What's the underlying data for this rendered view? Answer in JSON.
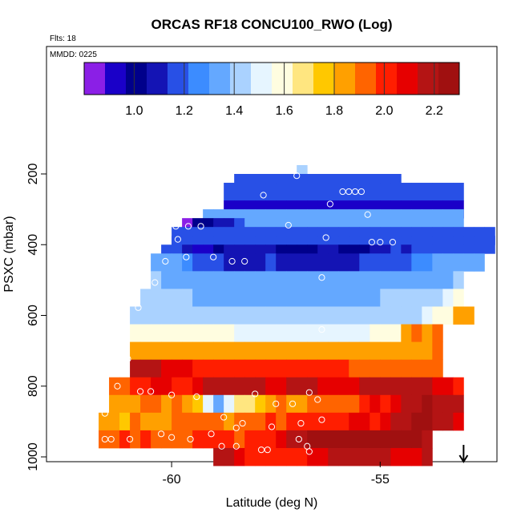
{
  "title": "ORCAS RF18 CONCU100_RWO (Log)",
  "flights_label": "Flts: 18",
  "date_label": "MMDD: 0225",
  "colors": {
    "scale": [
      "#8b1fe6",
      "#1a00c8",
      "#00008b",
      "#1414b4",
      "#2850e6",
      "#3c8cff",
      "#64a8ff",
      "#aad2ff",
      "#e6f5ff",
      "#fffde0",
      "#ffe680",
      "#ffc800",
      "#ffa000",
      "#ff6400",
      "#ff1e00",
      "#e60000",
      "#b41414",
      "#a01010"
    ],
    "arrow": "#000000",
    "marker": "#ffffff"
  },
  "chart_data": {
    "type": "heatmap",
    "title": "ORCAS RF18 CONCU100_RWO (Log)",
    "xlabel": "Latitude (deg N)",
    "ylabel": "PSXC (mbar)",
    "xlim": [
      -63,
      -52.2
    ],
    "ylim": [
      1010,
      0
    ],
    "x_ticks": [
      -60,
      -55
    ],
    "x_tick_labels": [
      "-60",
      "-55"
    ],
    "y_ticks": [
      200,
      400,
      600,
      800,
      1000
    ],
    "y_tick_labels": [
      "200",
      "400",
      "600",
      "800",
      "1000"
    ],
    "colorbar": {
      "range": [
        0.8,
        2.3
      ],
      "ticks": [
        1.0,
        1.2,
        1.4,
        1.6,
        1.8,
        2.0,
        2.2
      ],
      "tick_labels": [
        "1.0",
        "1.2",
        "1.4",
        "1.6",
        "1.8",
        "2.0",
        "2.2"
      ]
    },
    "cell_width_deg": 0.25,
    "cell_height_mbar": 50,
    "rows": [
      {
        "p": 200,
        "lat0": -57.0,
        "values": [
          1.4
        ]
      },
      {
        "p": 225,
        "lat0": -58.5,
        "values": [
          1.2,
          1.2,
          1.2,
          1.2,
          1.2,
          1.2,
          1.2,
          1.2,
          1.2,
          1.2,
          1.2,
          1.2,
          1.2,
          1.2,
          1.2,
          1.2
        ]
      },
      {
        "p": 250,
        "lat0": -58.75,
        "values": [
          1.2,
          1.2,
          1.2,
          1.2,
          1.2,
          1.2,
          1.2,
          1.2,
          1.2,
          1.2,
          1.2,
          1.2,
          1.2,
          1.2,
          1.2,
          1.2,
          1.2,
          1.2,
          1.2,
          1.2,
          1.2,
          1.2,
          1.2
        ]
      },
      {
        "p": 300,
        "lat0": -58.75,
        "values": [
          0.95,
          0.95,
          0.95,
          0.95,
          0.95,
          0.95,
          0.95,
          0.95,
          0.95,
          0.95,
          0.95,
          0.95,
          0.95,
          0.95,
          0.95,
          0.95,
          0.95,
          0.95,
          0.95,
          0.95,
          0.95,
          0.95,
          0.95
        ]
      },
      {
        "p": 325,
        "lat0": -59.25,
        "values": [
          1.3,
          1.3,
          1.3,
          1.3,
          1.3,
          1.3,
          1.3,
          1.3,
          1.3,
          1.3,
          1.3,
          1.3,
          1.3,
          1.3,
          1.3,
          1.3,
          1.3,
          1.3,
          1.3,
          1.3,
          1.3,
          1.3,
          1.3,
          1.3,
          1.3
        ]
      },
      {
        "p": 350,
        "lat0": -59.75,
        "values": [
          0.85,
          1.0,
          1.0,
          1.05,
          1.1,
          1.2,
          1.3,
          1.3,
          1.3,
          1.3,
          1.3,
          1.3,
          1.3,
          1.3,
          1.3,
          1.3,
          1.3,
          1.3,
          1.3,
          1.3,
          1.3,
          1.3,
          1.3,
          1.3,
          1.3
        ]
      },
      {
        "p": 375,
        "lat0": -60.0,
        "values": [
          1.2,
          1.2,
          1.2,
          1.2,
          1.2,
          1.2,
          1.2,
          1.2,
          1.2,
          1.2,
          1.2,
          1.2,
          1.2,
          1.2,
          1.2,
          1.2,
          1.2,
          1.2,
          1.2,
          1.2,
          1.2,
          1.2,
          1.2,
          1.2,
          1.2,
          1.2,
          1.2,
          1.2,
          1.2,
          1.2,
          1.2
        ]
      },
      {
        "p": 400,
        "lat0": -60.0,
        "values": [
          1.2,
          1.2,
          1.2,
          1.2,
          1.2,
          1.2,
          1.2,
          1.2,
          1.2,
          1.2,
          1.2,
          1.2,
          1.2,
          1.2,
          1.2,
          1.2,
          1.2,
          1.2,
          1.2,
          1.2,
          1.2,
          1.2,
          1.2,
          1.2,
          1.2,
          1.2,
          1.2,
          1.2,
          1.2,
          1.2,
          1.2
        ]
      },
      {
        "p": 425,
        "lat0": -60.25,
        "values": [
          1.2,
          1.2,
          1.1,
          0.95,
          0.9,
          1.0,
          1.05,
          1.1,
          1.1,
          1.05,
          1.05,
          1.0,
          1.0,
          1.0,
          1.0,
          1.05,
          1.05,
          1.0,
          1.0,
          1.0,
          1.05,
          1.1,
          1.15,
          1.1,
          1.2,
          1.2,
          1.2,
          1.2,
          1.2,
          1.2
        ]
      },
      {
        "p": 450,
        "lat0": -60.5,
        "values": [
          1.35,
          1.3,
          1.3,
          1.25,
          1.2,
          1.2,
          1.15,
          1.1,
          1.1,
          1.1,
          1.1,
          1.15,
          1.1,
          1.1,
          1.05,
          1.05,
          1.1,
          1.1,
          1.05,
          1.1,
          1.15,
          1.15,
          1.2,
          1.2,
          1.2,
          1.25,
          1.25,
          1.3,
          1.3,
          1.3,
          1.3,
          1.3
        ]
      },
      {
        "p": 500,
        "lat0": -60.5,
        "values": [
          1.4,
          1.35,
          1.35,
          1.35,
          1.35,
          1.35,
          1.35,
          1.3,
          1.3,
          1.3,
          1.3,
          1.3,
          1.3,
          1.3,
          1.3,
          1.3,
          1.3,
          1.3,
          1.3,
          1.3,
          1.3,
          1.3,
          1.3,
          1.35,
          1.35,
          1.35,
          1.35,
          1.35,
          1.35,
          1.4
        ]
      },
      {
        "p": 550,
        "lat0": -60.75,
        "values": [
          1.45,
          1.45,
          1.4,
          1.4,
          1.4,
          1.35,
          1.35,
          1.35,
          1.35,
          1.35,
          1.35,
          1.35,
          1.35,
          1.35,
          1.35,
          1.35,
          1.35,
          1.35,
          1.35,
          1.35,
          1.35,
          1.35,
          1.35,
          1.4,
          1.4,
          1.4,
          1.4,
          1.4,
          1.45,
          1.5,
          1.55
        ]
      },
      {
        "p": 600,
        "lat0": -61.0,
        "values": [
          1.45,
          1.45,
          1.45,
          1.45,
          1.45,
          1.4,
          1.4,
          1.4,
          1.4,
          1.4,
          1.4,
          1.4,
          1.4,
          1.4,
          1.4,
          1.4,
          1.4,
          1.4,
          1.4,
          1.4,
          1.4,
          1.4,
          1.45,
          1.45,
          1.45,
          1.45,
          1.45,
          1.45,
          1.5,
          1.6,
          1.6,
          1.8,
          1.85
        ]
      },
      {
        "p": 650,
        "lat0": -61.0,
        "values": [
          1.6,
          1.6,
          1.6,
          1.6,
          1.6,
          1.6,
          1.55,
          1.55,
          1.55,
          1.55,
          1.5,
          1.5,
          1.5,
          1.5,
          1.5,
          1.5,
          1.5,
          1.5,
          1.5,
          1.5,
          1.5,
          1.5,
          1.5,
          1.55,
          1.55,
          1.6,
          1.8,
          1.95,
          1.8,
          1.95
        ]
      },
      {
        "p": 700,
        "lat0": -61.0,
        "values": [
          1.85,
          1.85,
          1.85,
          1.85,
          1.85,
          1.85,
          1.85,
          1.85,
          1.85,
          1.85,
          1.85,
          1.85,
          1.85,
          1.85,
          1.85,
          1.8,
          1.8,
          1.8,
          1.8,
          1.8,
          1.8,
          1.8,
          1.8,
          1.8,
          1.85,
          1.8,
          1.8,
          1.85,
          1.8,
          1.95
        ]
      },
      {
        "p": 750,
        "lat0": -61.0,
        "values": [
          2.15,
          2.15,
          2.15,
          2.1,
          2.1,
          2.1,
          2.05,
          2.05,
          2.05,
          2.05,
          2.05,
          2.05,
          2.0,
          2.0,
          2.0,
          2.0,
          2.0,
          2.0,
          2.0,
          2.0,
          2.0,
          1.95,
          1.95,
          1.95,
          1.95,
          1.95,
          1.95,
          1.9,
          1.9,
          1.9
        ]
      },
      {
        "p": 800,
        "lat0": -61.5,
        "values": [
          1.95,
          1.95,
          2.0,
          2.05,
          2.1,
          2.1,
          2.05,
          2.05,
          2.1,
          2.15,
          2.15,
          2.15,
          2.2,
          2.2,
          2.15,
          2.1,
          2.1,
          2.15,
          2.15,
          2.15,
          2.1,
          2.1,
          2.1,
          2.1,
          2.15,
          2.15,
          2.2,
          2.15,
          2.15,
          2.15,
          2.15,
          2.1,
          2.1,
          2.05
        ]
      },
      {
        "p": 850,
        "lat0": -61.5,
        "values": [
          1.8,
          1.8,
          1.85,
          1.9,
          1.95,
          1.85,
          1.9,
          1.8,
          1.75,
          1.5,
          1.3,
          1.5,
          1.65,
          1.7,
          1.75,
          1.85,
          1.9,
          1.8,
          1.85,
          1.9,
          1.95,
          1.95,
          1.9,
          1.95,
          2.0,
          2.1,
          2.05,
          2.1,
          2.15,
          2.2,
          2.25,
          2.15,
          2.2,
          2.15
        ]
      },
      {
        "p": 900,
        "lat0": -61.75,
        "values": [
          1.8,
          1.8,
          1.75,
          1.9,
          1.8,
          1.85,
          1.85,
          1.9,
          1.9,
          1.95,
          1.95,
          1.9,
          1.85,
          1.95,
          1.95,
          1.95,
          2.0,
          1.95,
          2.0,
          2.0,
          2.05,
          2.05,
          2.0,
          2.05,
          2.1,
          2.1,
          2.05,
          2.1,
          2.15,
          2.2,
          2.25,
          2.25,
          2.2,
          2.15,
          2.1
        ]
      },
      {
        "p": 950,
        "lat0": -61.75,
        "values": [
          1.95,
          1.95,
          2.05,
          1.95,
          2.0,
          1.9,
          1.9,
          1.95,
          1.95,
          2.0,
          2.0,
          2.05,
          2.0,
          1.95,
          2.0,
          2.0,
          2.05,
          2.1,
          2.15,
          2.2,
          2.25,
          2.25,
          2.25,
          2.25,
          2.25,
          2.25,
          2.25,
          2.25,
          2.25,
          2.25,
          2.25,
          2.2
        ]
      },
      {
        "p": 1000,
        "lat0": -59.0,
        "values": [
          2.15,
          2.15,
          2.1,
          2.05,
          2.05,
          2.0,
          2.0,
          2.0,
          2.05,
          2.1,
          2.1,
          2.15,
          2.2,
          2.2,
          2.15,
          2.15,
          2.15,
          2.1,
          2.1,
          2.1,
          2.15
        ]
      }
    ],
    "obs_points": [
      {
        "lat": -57.0,
        "p": 205
      },
      {
        "lat": -57.8,
        "p": 260
      },
      {
        "lat": -55.9,
        "p": 250
      },
      {
        "lat": -55.75,
        "p": 250
      },
      {
        "lat": -55.6,
        "p": 250
      },
      {
        "lat": -55.45,
        "p": 250
      },
      {
        "lat": -56.2,
        "p": 285
      },
      {
        "lat": -55.3,
        "p": 315
      },
      {
        "lat": -57.2,
        "p": 345
      },
      {
        "lat": -59.3,
        "p": 348
      },
      {
        "lat": -59.6,
        "p": 348
      },
      {
        "lat": -59.9,
        "p": 348
      },
      {
        "lat": -56.3,
        "p": 380
      },
      {
        "lat": -55.2,
        "p": 393
      },
      {
        "lat": -55.0,
        "p": 393
      },
      {
        "lat": -54.7,
        "p": 393
      },
      {
        "lat": -59.85,
        "p": 385
      },
      {
        "lat": -59.0,
        "p": 435
      },
      {
        "lat": -59.65,
        "p": 435
      },
      {
        "lat": -58.25,
        "p": 447
      },
      {
        "lat": -58.55,
        "p": 447
      },
      {
        "lat": -60.15,
        "p": 447
      },
      {
        "lat": -56.4,
        "p": 493
      },
      {
        "lat": -60.4,
        "p": 507
      },
      {
        "lat": -60.8,
        "p": 578
      },
      {
        "lat": -56.4,
        "p": 640
      },
      {
        "lat": -61.05,
        "p": 723
      },
      {
        "lat": -61.3,
        "p": 800
      },
      {
        "lat": -60.75,
        "p": 815
      },
      {
        "lat": -60.5,
        "p": 815
      },
      {
        "lat": -60.0,
        "p": 825
      },
      {
        "lat": -59.4,
        "p": 830
      },
      {
        "lat": -58.0,
        "p": 822
      },
      {
        "lat": -57.5,
        "p": 850
      },
      {
        "lat": -57.1,
        "p": 850
      },
      {
        "lat": -56.5,
        "p": 838
      },
      {
        "lat": -56.7,
        "p": 818
      },
      {
        "lat": -61.6,
        "p": 877
      },
      {
        "lat": -58.75,
        "p": 888
      },
      {
        "lat": -58.3,
        "p": 905
      },
      {
        "lat": -57.6,
        "p": 915
      },
      {
        "lat": -56.9,
        "p": 905
      },
      {
        "lat": -56.4,
        "p": 895
      },
      {
        "lat": -59.05,
        "p": 935
      },
      {
        "lat": -58.45,
        "p": 918
      },
      {
        "lat": -61.6,
        "p": 950
      },
      {
        "lat": -61.45,
        "p": 950
      },
      {
        "lat": -61.0,
        "p": 950
      },
      {
        "lat": -60.25,
        "p": 935
      },
      {
        "lat": -60.0,
        "p": 945
      },
      {
        "lat": -59.55,
        "p": 950
      },
      {
        "lat": -58.45,
        "p": 970
      },
      {
        "lat": -58.8,
        "p": 970
      },
      {
        "lat": -57.85,
        "p": 980
      },
      {
        "lat": -57.7,
        "p": 980
      },
      {
        "lat": -56.95,
        "p": 950
      },
      {
        "lat": -56.75,
        "p": 970
      },
      {
        "lat": -56.7,
        "p": 985
      }
    ],
    "arrow_lat": -53.0
  }
}
